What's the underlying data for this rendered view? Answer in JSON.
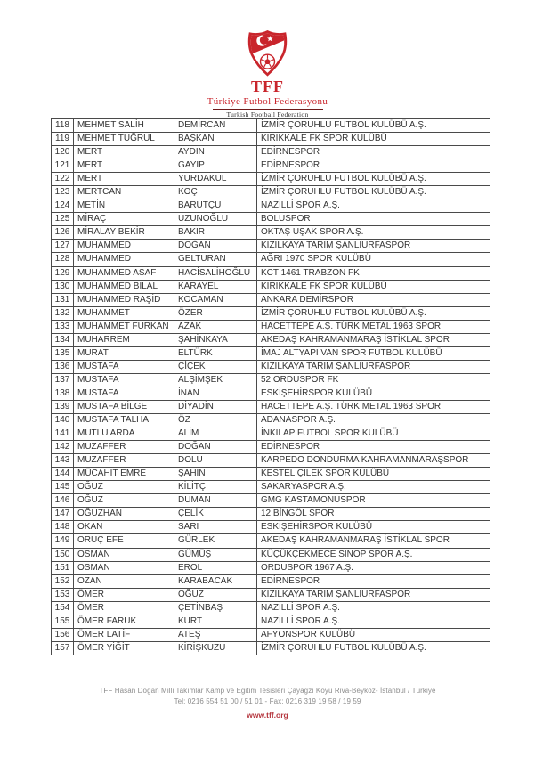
{
  "header": {
    "org_acronym": "TFF",
    "org_name_tr": "Türkiye Futbol Federasyonu",
    "org_name_en": "Turkish Football Federation",
    "logo_icon": "tff-crescent-star-football-shield"
  },
  "table": {
    "columns": [
      "number",
      "first_name",
      "last_name",
      "club"
    ],
    "rows": [
      [
        "118",
        "MEHMET SALİH",
        "DEMİRCAN",
        "İZMİR ÇORUHLU FUTBOL KULÜBÜ A.Ş."
      ],
      [
        "119",
        "MEHMET TUĞRUL",
        "BAŞKAN",
        "KIRIKKALE FK SPOR KULÜBÜ"
      ],
      [
        "120",
        "MERT",
        "AYDIN",
        "EDİRNESPOR"
      ],
      [
        "121",
        "MERT",
        "GAYIP",
        "EDİRNESPOR"
      ],
      [
        "122",
        "MERT",
        "YURDAKUL",
        "İZMİR ÇORUHLU FUTBOL KULÜBÜ A.Ş."
      ],
      [
        "123",
        "MERTCAN",
        "KOÇ",
        "İZMİR ÇORUHLU FUTBOL KULÜBÜ A.Ş."
      ],
      [
        "124",
        "METİN",
        "BARUTÇU",
        "NAZİLLİ SPOR A.Ş."
      ],
      [
        "125",
        "MİRAÇ",
        "UZUNOĞLU",
        "BOLUSPOR"
      ],
      [
        "126",
        "MİRALAY BEKİR",
        "BAKIR",
        "OKTAŞ UŞAK SPOR A.Ş."
      ],
      [
        "127",
        "MUHAMMED",
        "DOĞAN",
        "KIZILKAYA TARIM ŞANLIURFASPOR"
      ],
      [
        "128",
        "MUHAMMED",
        "GELTURAN",
        "AĞRI 1970 SPOR KULÜBÜ"
      ],
      [
        "129",
        "MUHAMMED ASAF",
        "HACİSALİHOĞLU",
        "KCT 1461 TRABZON FK"
      ],
      [
        "130",
        "MUHAMMED BİLAL",
        "KARAYEL",
        "KIRIKKALE FK SPOR KULÜBÜ"
      ],
      [
        "131",
        "MUHAMMED RAŞİD",
        "KOCAMAN",
        "ANKARA DEMİRSPOR"
      ],
      [
        "132",
        "MUHAMMET",
        "ÖZER",
        "İZMİR ÇORUHLU FUTBOL KULÜBÜ A.Ş."
      ],
      [
        "133",
        "MUHAMMET FURKAN",
        "AZAK",
        "HACETTEPE A.Ş. TÜRK METAL 1963 SPOR"
      ],
      [
        "134",
        "MUHARREM",
        "ŞAHİNKAYA",
        "AKEDAŞ KAHRAMANMARAŞ İSTİKLAL SPOR"
      ],
      [
        "135",
        "MURAT",
        "ELTÜRK",
        "İMAJ ALTYAPI VAN SPOR FUTBOL KULÜBÜ"
      ],
      [
        "136",
        "MUSTAFA",
        "ÇİÇEK",
        "KIZILKAYA TARIM ŞANLIURFASPOR"
      ],
      [
        "137",
        "MUSTAFA",
        "ALŞİMŞEK",
        "52 ORDUSPOR FK"
      ],
      [
        "138",
        "MUSTAFA",
        "İNAN",
        "ESKİŞEHİRSPOR KULÜBÜ"
      ],
      [
        "139",
        "MUSTAFA BİLGE",
        "DİYADİN",
        "HACETTEPE A.Ş. TÜRK METAL 1963 SPOR"
      ],
      [
        "140",
        "MUSTAFA TALHA",
        "ÖZ",
        "ADANASPOR A.Ş."
      ],
      [
        "141",
        "MUTLU ARDA",
        "ALİM",
        "İNKILAP FUTBOL SPOR KULÜBÜ"
      ],
      [
        "142",
        "MUZAFFER",
        "DOĞAN",
        "EDİRNESPOR"
      ],
      [
        "143",
        "MUZAFFER",
        "DOLU",
        "KARPEDO DONDURMA KAHRAMANMARAŞSPOR"
      ],
      [
        "144",
        "MÜCAHİT EMRE",
        "ŞAHİN",
        "KESTEL ÇİLEK SPOR KULÜBÜ"
      ],
      [
        "145",
        "OĞUZ",
        "KİLİTÇİ",
        "SAKARYASPOR A.Ş."
      ],
      [
        "146",
        "OĞUZ",
        "DUMAN",
        "GMG KASTAMONUSPOR"
      ],
      [
        "147",
        "OĞUZHAN",
        "ÇELİK",
        "12 BİNGÖL SPOR"
      ],
      [
        "148",
        "OKAN",
        "SARI",
        "ESKİŞEHİRSPOR KULÜBÜ"
      ],
      [
        "149",
        "ORUÇ EFE",
        "GÜRLEK",
        "AKEDAŞ KAHRAMANMARAŞ İSTİKLAL SPOR"
      ],
      [
        "150",
        "OSMAN",
        "GÜMÜŞ",
        "KÜÇÜKÇEKMECE SİNOP SPOR A.Ş."
      ],
      [
        "151",
        "OSMAN",
        "EROL",
        "ORDUSPOR 1967 A.Ş."
      ],
      [
        "152",
        "OZAN",
        "KARABACAK",
        "EDİRNESPOR"
      ],
      [
        "153",
        "ÖMER",
        "OĞUZ",
        "KIZILKAYA TARIM ŞANLIURFASPOR"
      ],
      [
        "154",
        "ÖMER",
        "ÇETİNBAŞ",
        "NAZİLLİ SPOR A.Ş."
      ],
      [
        "155",
        "ÖMER FARUK",
        "KURT",
        "NAZİLLİ SPOR A.Ş."
      ],
      [
        "156",
        "ÖMER LATİF",
        "ATEŞ",
        "AFYONSPOR KULÜBÜ"
      ],
      [
        "157",
        "ÖMER YİĞİT",
        "KİRİŞKUZU",
        "İZMİR ÇORUHLU FUTBOL KULÜBÜ A.Ş."
      ]
    ]
  },
  "footer": {
    "address": "TFF Hasan Doğan Milli Takımlar Kamp ve Eğitim Tesisleri Çayağzı Köyü Riva-Beykoz- İstanbul / Türkiye",
    "phone_fax": "Tel: 0216 554 51 00 / 51 01 - Fax: 0216 319 19 58 / 19 59",
    "website": "www.tff.org"
  },
  "colors": {
    "brand_red": "#c9252c",
    "divider_maroon": "#6e1b1b",
    "table_border": "#4a4a4a",
    "table_text": "#333333",
    "footer_gray": "#8d8d8d",
    "link_red": "#b5373f"
  }
}
